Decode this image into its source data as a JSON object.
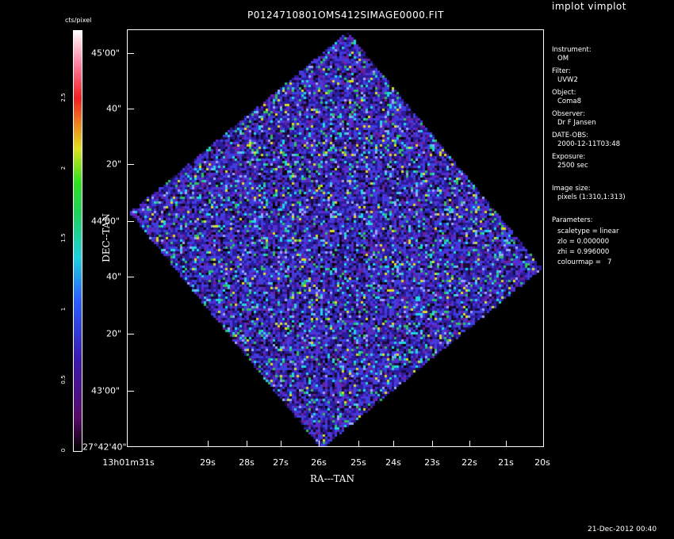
{
  "window": {
    "title": "implot vimplot"
  },
  "plot": {
    "title": "P0124710801OMS412SIMAGE0000.FIT",
    "xlabel": "RA---TAN",
    "ylabel": "DEC--TAN",
    "x_ticks": [
      "13h01m31s",
      "29s",
      "28s",
      "27s",
      "26s",
      "25s",
      "24s",
      "23s",
      "22s",
      "21s",
      "20s"
    ],
    "y_ticks": [
      "45'00\"",
      "40\"",
      "20\"",
      "44'00\"",
      "40\"",
      "20\"",
      "43'00\"",
      "27°42'40\""
    ],
    "image_colors": [
      "#1a0a3a",
      "#2b1c9e",
      "#3f3fe0",
      "#5a2ad0",
      "#6a1f9c",
      "#1fd8e0",
      "#2fc060",
      "#d8e020",
      "#9aa8ff",
      "#000000"
    ]
  },
  "colorbar": {
    "label": "cts/pixel",
    "ticks": [
      "0",
      "0.5",
      "1",
      "1.5",
      "2",
      "2.5"
    ],
    "range": [
      0,
      3
    ]
  },
  "info": {
    "instrument_label": "Instrument:",
    "instrument_value": "OM",
    "filter_label": "Filter:",
    "filter_value": "UVW2",
    "object_label": "Object:",
    "object_value": "Coma8",
    "observer_label": "Observer:",
    "observer_value": "Dr F Jansen",
    "date_label": "DATE-OBS:",
    "date_value": "2000-12-11T03:48",
    "exposure_label": "Exposure:",
    "exposure_value": "2500 sec",
    "imagesize_label": "Image size:",
    "imagesize_value": "pixels (1:310,1:313)",
    "params_label": "Parameters:",
    "param_scaletype": "scaletype = linear",
    "param_zlo": "zlo = 0.000000",
    "param_zhi": "zhi = 0.996000",
    "param_colourmap": "colourmap =   7"
  },
  "footer": {
    "timestamp": "21-Dec-2012 00:40"
  }
}
